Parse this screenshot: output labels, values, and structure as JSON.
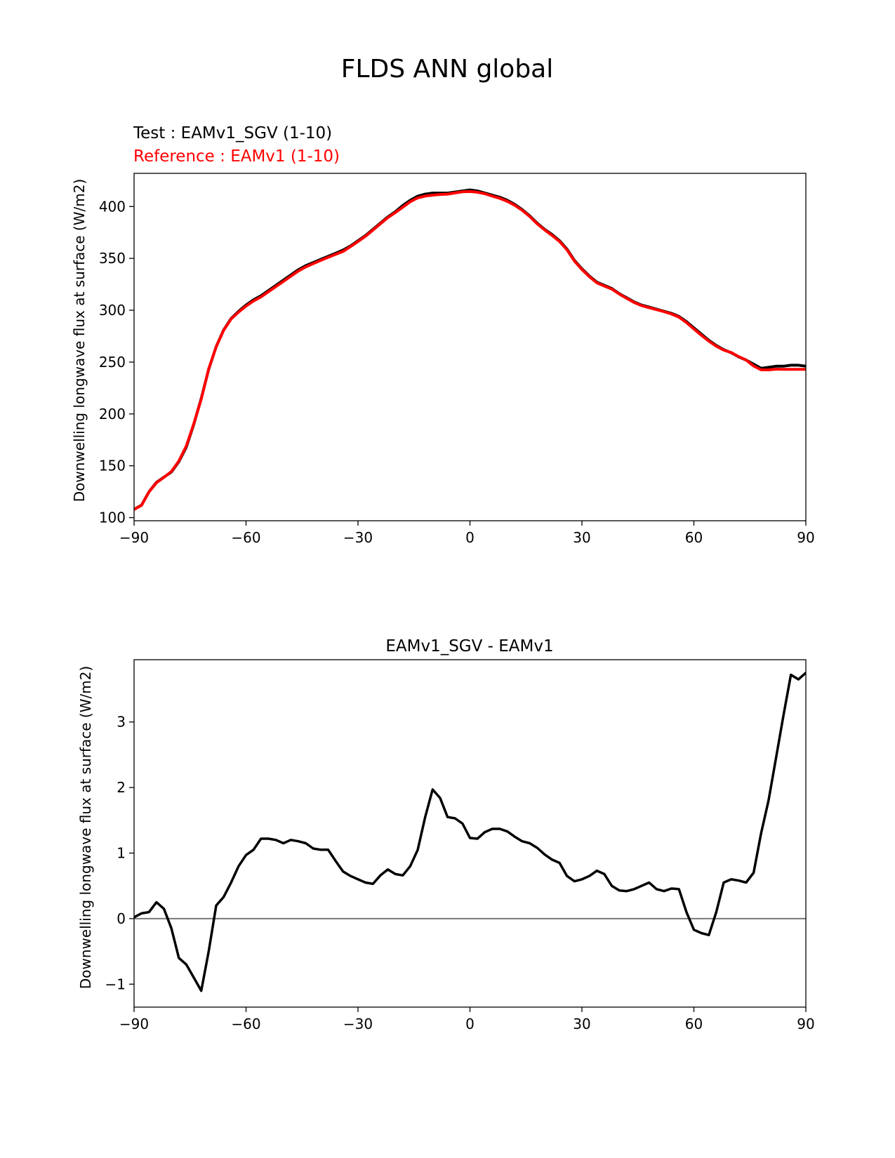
{
  "suptitle": "FLDS ANN global",
  "chart_data": [
    {
      "type": "line",
      "test_label": "Test : EAMv1_SGV (1-10)",
      "reference_label": "Reference : EAMv1 (1-10)",
      "ylabel": "Downwelling longwave flux at surface (W/m2)",
      "xlabel": "",
      "xlim": [
        -90,
        90
      ],
      "ylim": [
        97,
        432
      ],
      "xticks": [
        -90,
        -60,
        -30,
        0,
        30,
        60,
        90
      ],
      "xtick_labels": [
        "−90",
        "−60",
        "−30",
        "0",
        "30",
        "60",
        "90"
      ],
      "yticks": [
        100,
        150,
        200,
        250,
        300,
        350,
        400
      ],
      "yticks_labels": [
        "100",
        "150",
        "200",
        "250",
        "300",
        "350",
        "400"
      ],
      "colors": {
        "test": "#000000",
        "reference": "#ff0000"
      },
      "x": [
        -90,
        -88,
        -86,
        -84,
        -82,
        -80,
        -78,
        -76,
        -74,
        -72,
        -70,
        -68,
        -66,
        -64,
        -62,
        -60,
        -58,
        -56,
        -54,
        -52,
        -50,
        -48,
        -46,
        -44,
        -42,
        -40,
        -38,
        -36,
        -34,
        -32,
        -30,
        -28,
        -26,
        -24,
        -22,
        -20,
        -18,
        -16,
        -14,
        -12,
        -10,
        -8,
        -6,
        -4,
        -2,
        0,
        2,
        4,
        6,
        8,
        10,
        12,
        14,
        16,
        18,
        20,
        22,
        24,
        26,
        28,
        30,
        32,
        34,
        36,
        38,
        40,
        42,
        44,
        46,
        48,
        50,
        52,
        54,
        56,
        58,
        60,
        62,
        64,
        66,
        68,
        70,
        72,
        74,
        76,
        78,
        80,
        82,
        84,
        86,
        88,
        90
      ],
      "series": [
        {
          "name": "Test : EAMv1_SGV (1-10)",
          "values": [
            108,
            112,
            125,
            134,
            139,
            144,
            154,
            168,
            190,
            215,
            243,
            265,
            281,
            292,
            299,
            305,
            310,
            314,
            319,
            324,
            329,
            334,
            339,
            343,
            346,
            349,
            352,
            355,
            358,
            362,
            367,
            372,
            378,
            384,
            390,
            395,
            401,
            406,
            410,
            412,
            413,
            413,
            413,
            414,
            415,
            416,
            415,
            413,
            411,
            409,
            406,
            402,
            397,
            391,
            384,
            378,
            373,
            367,
            359,
            348,
            340,
            333,
            327,
            324,
            321,
            316,
            312,
            308,
            305,
            303,
            301,
            299,
            297,
            294,
            289,
            283,
            277,
            271,
            266,
            262,
            259,
            255,
            252,
            248,
            244,
            245,
            246,
            246,
            247,
            247,
            246
          ]
        },
        {
          "name": "Reference : EAMv1 (1-10)",
          "values": [
            107.9,
            111.9,
            124.9,
            133.7,
            138.8,
            144.5,
            154.6,
            169.1,
            190.6,
            214.3,
            243.5,
            264.7,
            280.7,
            291.6,
            298.2,
            304.0,
            308.9,
            312.8,
            317.8,
            322.8,
            327.8,
            332.8,
            337.8,
            341.8,
            344.9,
            348.0,
            351.0,
            353.9,
            356.7,
            361.4,
            366.3,
            371.3,
            377.3,
            383.4,
            389.3,
            394.2,
            399.4,
            404.6,
            408.4,
            410.1,
            411.0,
            411.6,
            412.0,
            413.1,
            414.2,
            414.5,
            413.8,
            412.3,
            410.0,
            407.9,
            405.0,
            401.2,
            396.4,
            390.4,
            383.4,
            377.5,
            372.1,
            366.3,
            358.3,
            347.4,
            339.3,
            332.4,
            326.4,
            323.3,
            320.5,
            315.6,
            311.5,
            307.5,
            304.4,
            302.5,
            300.6,
            298.6,
            296.4,
            293.3,
            288.1,
            281.9,
            275.9,
            270.2,
            265.3,
            261.5,
            259.2,
            255.3,
            252.0,
            246.2,
            242.6,
            242.5,
            243.2,
            243.0,
            243.0,
            243.0,
            243.0
          ]
        }
      ]
    },
    {
      "type": "line",
      "title": "EAMv1_SGV - EAMv1",
      "ylabel": "Downwelling longwave flux at surface (W/m2)",
      "xlabel": "",
      "xlim": [
        -90,
        90
      ],
      "ylim": [
        -1.35,
        3.95
      ],
      "xticks": [
        -90,
        -60,
        -30,
        0,
        30,
        60,
        90
      ],
      "xtick_labels": [
        "−90",
        "−60",
        "−30",
        "0",
        "30",
        "60",
        "90"
      ],
      "yticks": [
        -1,
        0,
        1,
        2,
        3
      ],
      "yticks_labels": [
        "−1",
        "0",
        "1",
        "2",
        "3"
      ],
      "zero_line": 0,
      "colors": {
        "diff": "#000000",
        "zero_line": "#808080"
      },
      "x": [
        -90,
        -88,
        -86,
        -84,
        -82,
        -80,
        -78,
        -76,
        -74,
        -72,
        -70,
        -68,
        -66,
        -64,
        -62,
        -60,
        -58,
        -56,
        -54,
        -52,
        -50,
        -48,
        -46,
        -44,
        -42,
        -40,
        -38,
        -36,
        -34,
        -32,
        -30,
        -28,
        -26,
        -24,
        -22,
        -20,
        -18,
        -16,
        -14,
        -12,
        -10,
        -8,
        -6,
        -4,
        -2,
        0,
        2,
        4,
        6,
        8,
        10,
        12,
        14,
        16,
        18,
        20,
        22,
        24,
        26,
        28,
        30,
        32,
        34,
        36,
        38,
        40,
        42,
        44,
        46,
        48,
        50,
        52,
        54,
        56,
        58,
        60,
        62,
        64,
        66,
        68,
        70,
        72,
        74,
        76,
        78,
        80,
        82,
        84,
        86,
        88,
        90
      ],
      "series": [
        {
          "name": "EAMv1_SGV - EAMv1",
          "values": [
            0.02,
            0.08,
            0.1,
            0.25,
            0.15,
            -0.15,
            -0.6,
            -0.7,
            -0.9,
            -1.1,
            -0.5,
            0.2,
            0.33,
            0.55,
            0.8,
            0.97,
            1.05,
            1.22,
            1.22,
            1.2,
            1.15,
            1.2,
            1.18,
            1.15,
            1.07,
            1.05,
            1.05,
            0.88,
            0.72,
            0.65,
            0.6,
            0.55,
            0.53,
            0.66,
            0.75,
            0.68,
            0.66,
            0.8,
            1.05,
            1.55,
            1.97,
            1.84,
            1.55,
            1.53,
            1.45,
            1.23,
            1.22,
            1.32,
            1.37,
            1.37,
            1.33,
            1.25,
            1.18,
            1.15,
            1.08,
            0.98,
            0.9,
            0.85,
            0.65,
            0.57,
            0.6,
            0.65,
            0.73,
            0.68,
            0.5,
            0.43,
            0.42,
            0.45,
            0.5,
            0.55,
            0.45,
            0.42,
            0.46,
            0.45,
            0.1,
            -0.17,
            -0.22,
            -0.25,
            0.1,
            0.55,
            0.6,
            0.58,
            0.55,
            0.7,
            1.3,
            1.8,
            2.45,
            3.1,
            3.72,
            3.65,
            3.75
          ]
        }
      ]
    }
  ]
}
